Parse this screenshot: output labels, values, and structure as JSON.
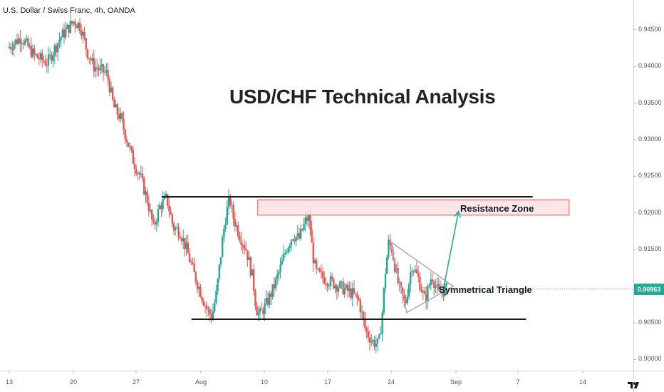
{
  "header": {
    "symbol": "U.S. Dollar / Swiss Franc, 4h, OANDA"
  },
  "chart_data": {
    "type": "candlestick",
    "title": "USD/CHF Technical Analysis",
    "y_axis": {
      "ticks": [
        "0.94500",
        "0.94000",
        "0.93500",
        "0.93000",
        "0.92500",
        "0.92000",
        "0.91500",
        "0.91000",
        "0.90500",
        "0.90000"
      ],
      "tick_values": [
        0.945,
        0.94,
        0.935,
        0.93,
        0.925,
        0.92,
        0.915,
        0.91,
        0.905,
        0.9
      ],
      "range": [
        0.8995,
        0.9488
      ],
      "last_price": "0.90963",
      "last_price_value": 0.90963
    },
    "x_axis": {
      "ticks": [
        "13",
        "20",
        "27",
        "Aug",
        "10",
        "17",
        "24",
        "Sep",
        "7",
        "14"
      ]
    },
    "series": [
      {
        "t": 0,
        "price": 0.9425
      },
      {
        "t": 2,
        "price": 0.944
      },
      {
        "t": 4,
        "price": 0.9415
      },
      {
        "t": 6,
        "price": 0.9405
      },
      {
        "t": 8,
        "price": 0.944
      },
      {
        "t": 10,
        "price": 0.9462
      },
      {
        "t": 11,
        "price": 0.9455
      },
      {
        "t": 12,
        "price": 0.942
      },
      {
        "t": 13,
        "price": 0.94
      },
      {
        "t": 14,
        "price": 0.9395
      },
      {
        "t": 15,
        "price": 0.939
      },
      {
        "t": 16,
        "price": 0.9345
      },
      {
        "t": 17,
        "price": 0.933
      },
      {
        "t": 18,
        "price": 0.93
      },
      {
        "t": 19,
        "price": 0.927
      },
      {
        "t": 20,
        "price": 0.925
      },
      {
        "t": 21,
        "price": 0.922
      },
      {
        "t": 22,
        "price": 0.918
      },
      {
        "t": 23,
        "price": 0.921
      },
      {
        "t": 24,
        "price": 0.922
      },
      {
        "t": 25,
        "price": 0.918
      },
      {
        "t": 26,
        "price": 0.9175
      },
      {
        "t": 27,
        "price": 0.915
      },
      {
        "t": 28,
        "price": 0.912
      },
      {
        "t": 29,
        "price": 0.9095
      },
      {
        "t": 30,
        "price": 0.907
      },
      {
        "t": 30.8,
        "price": 0.9058
      },
      {
        "t": 31.5,
        "price": 0.909
      },
      {
        "t": 32,
        "price": 0.913
      },
      {
        "t": 32.5,
        "price": 0.917
      },
      {
        "t": 33,
        "price": 0.92
      },
      {
        "t": 33.5,
        "price": 0.922
      },
      {
        "t": 34,
        "price": 0.9195
      },
      {
        "t": 35,
        "price": 0.917
      },
      {
        "t": 36,
        "price": 0.915
      },
      {
        "t": 37,
        "price": 0.911
      },
      {
        "t": 37.5,
        "price": 0.907
      },
      {
        "t": 38,
        "price": 0.906
      },
      {
        "t": 39,
        "price": 0.9075
      },
      {
        "t": 40,
        "price": 0.9095
      },
      {
        "t": 41,
        "price": 0.912
      },
      {
        "t": 42,
        "price": 0.915
      },
      {
        "t": 43,
        "price": 0.917
      },
      {
        "t": 44,
        "price": 0.9165
      },
      {
        "t": 45,
        "price": 0.919
      },
      {
        "t": 45.5,
        "price": 0.9195
      },
      {
        "t": 46,
        "price": 0.9145
      },
      {
        "t": 46.5,
        "price": 0.912
      },
      {
        "t": 47,
        "price": 0.9115
      },
      {
        "t": 48,
        "price": 0.911
      },
      {
        "t": 49,
        "price": 0.9105
      },
      {
        "t": 50,
        "price": 0.91
      },
      {
        "t": 51,
        "price": 0.9095
      },
      {
        "t": 52,
        "price": 0.909
      },
      {
        "t": 53,
        "price": 0.908
      },
      {
        "t": 53.5,
        "price": 0.906
      },
      {
        "t": 54,
        "price": 0.904
      },
      {
        "t": 55,
        "price": 0.9025
      },
      {
        "t": 56,
        "price": 0.902
      },
      {
        "t": 56.5,
        "price": 0.906
      },
      {
        "t": 57,
        "price": 0.912
      },
      {
        "t": 57.5,
        "price": 0.916
      },
      {
        "t": 58,
        "price": 0.915
      },
      {
        "t": 59,
        "price": 0.91
      },
      {
        "t": 60,
        "price": 0.9075
      },
      {
        "t": 61,
        "price": 0.913
      },
      {
        "t": 62,
        "price": 0.911
      },
      {
        "t": 63,
        "price": 0.908
      },
      {
        "t": 64,
        "price": 0.9115
      },
      {
        "t": 65,
        "price": 0.909
      },
      {
        "t": 66,
        "price": 0.9096
      }
    ],
    "annotations": [
      {
        "type": "hline",
        "price": 0.9222,
        "from_t": 23.0,
        "to_t": 79.0
      },
      {
        "type": "hline",
        "price": 0.9055,
        "from_t": 27.5,
        "to_t": 78.0
      },
      {
        "type": "rect",
        "label": "Resistance Zone",
        "price_top": 0.9218,
        "price_bottom": 0.9197,
        "from_t": 37.5,
        "to_t": 84.5
      },
      {
        "type": "triangle",
        "label": "Symmetrical Triangle",
        "upper": [
          [
            57.5,
            0.9161
          ],
          [
            67.0,
            0.91
          ]
        ],
        "lower": [
          [
            60.0,
            0.9064
          ],
          [
            67.0,
            0.91
          ]
        ]
      },
      {
        "type": "arrow",
        "from": [
          65.5,
          0.9095
        ],
        "to": [
          67.8,
          0.9202
        ]
      }
    ],
    "colors": {
      "up": "#26a69a",
      "down": "#ef5350",
      "zone_fill": "#fde2e3",
      "zone_border": "#ef5350",
      "arrow": "#22ab94",
      "triangle": "#aaaaaa",
      "level_line": "#000000",
      "last_price_bg": "#22ab94"
    }
  }
}
